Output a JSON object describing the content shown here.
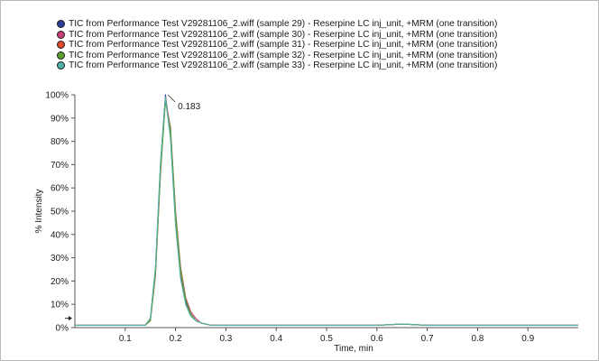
{
  "chart_data": {
    "type": "line",
    "title": "",
    "xlabel": "Time, min",
    "ylabel": "% Intensity",
    "xlim": [
      0.0,
      1.0
    ],
    "ylim": [
      0,
      100
    ],
    "x_ticks": [
      0.1,
      0.2,
      0.3,
      0.4,
      0.5,
      0.6,
      0.7,
      0.8,
      0.9
    ],
    "x_tick_labels": [
      "0.1",
      "0.2",
      "0.3",
      "0.4",
      "0.5",
      "0.6",
      "0.7",
      "0.8",
      "0.9"
    ],
    "y_ticks": [
      0,
      10,
      20,
      30,
      40,
      50,
      60,
      70,
      80,
      90,
      100
    ],
    "y_tick_labels": [
      "0%",
      "10%",
      "20%",
      "30%",
      "40%",
      "50%",
      "60%",
      "70%",
      "80%",
      "90%",
      "100%"
    ],
    "grid": false,
    "legend_position": "top",
    "annotations": [
      {
        "text": "0.183",
        "x": 0.183,
        "y": 100
      }
    ],
    "series": [
      {
        "name": "TIC from Performance Test V29281106_2.wiff (sample 29) - Reserpine LC inj_unit, +MRM (one transition)",
        "color": "#2f3f9e",
        "x": [
          0.0,
          0.05,
          0.1,
          0.14,
          0.15,
          0.16,
          0.17,
          0.18,
          0.19,
          0.2,
          0.21,
          0.22,
          0.23,
          0.24,
          0.25,
          0.27,
          0.3,
          0.4,
          0.5,
          0.6,
          0.65,
          0.7,
          0.8,
          0.9,
          1.0
        ],
        "y": [
          1,
          1,
          1,
          1,
          4,
          25,
          70,
          100,
          82,
          45,
          22,
          11,
          6,
          3,
          2,
          1,
          1,
          1,
          1,
          1,
          1.5,
          1,
          1,
          1,
          1
        ]
      },
      {
        "name": "TIC from Performance Test V29281106_2.wiff (sample 30) - Reserpine LC inj_unit, +MRM (one transition)",
        "color": "#c73f77",
        "x": [
          0.0,
          0.05,
          0.1,
          0.14,
          0.15,
          0.16,
          0.17,
          0.18,
          0.19,
          0.2,
          0.21,
          0.22,
          0.23,
          0.24,
          0.25,
          0.27,
          0.3,
          0.4,
          0.5,
          0.6,
          0.65,
          0.7,
          0.8,
          0.9,
          1.0
        ],
        "y": [
          1,
          1,
          1,
          1,
          3,
          22,
          66,
          98,
          86,
          50,
          26,
          13,
          7,
          4,
          2,
          1,
          1,
          1,
          1,
          1,
          1.5,
          1,
          1,
          1,
          1
        ]
      },
      {
        "name": "TIC from Performance Test V29281106_2.wiff (sample 31) - Reserpine LC inj_unit, +MRM (one transition)",
        "color": "#e0492f",
        "x": [
          0.0,
          0.05,
          0.1,
          0.14,
          0.15,
          0.16,
          0.17,
          0.18,
          0.19,
          0.2,
          0.21,
          0.22,
          0.23,
          0.24,
          0.25,
          0.27,
          0.3,
          0.4,
          0.5,
          0.6,
          0.65,
          0.7,
          0.8,
          0.9,
          1.0
        ],
        "y": [
          1,
          1,
          1,
          1,
          4,
          24,
          68,
          99,
          84,
          47,
          24,
          12,
          6,
          3,
          2,
          1,
          1,
          1,
          1,
          1,
          1.5,
          1,
          1,
          1,
          1
        ]
      },
      {
        "name": "TIC from Performance Test V29281106_2.wiff (sample 32) - Reserpine LC inj_unit, +MRM (one transition)",
        "color": "#5aa02c",
        "x": [
          0.0,
          0.05,
          0.1,
          0.14,
          0.15,
          0.16,
          0.17,
          0.18,
          0.19,
          0.2,
          0.21,
          0.22,
          0.23,
          0.24,
          0.25,
          0.27,
          0.3,
          0.4,
          0.5,
          0.6,
          0.65,
          0.7,
          0.8,
          0.9,
          1.0
        ],
        "y": [
          1,
          1,
          1,
          1,
          3,
          23,
          67,
          97,
          85,
          49,
          25,
          12,
          6,
          3,
          2,
          1,
          1,
          1,
          1,
          1,
          1.5,
          1,
          1,
          1,
          1
        ]
      },
      {
        "name": "TIC from Performance Test V29281106_2.wiff (sample 33) - Reserpine LC inj_unit, +MRM (one transition)",
        "color": "#4fb3a6",
        "x": [
          0.0,
          0.05,
          0.1,
          0.14,
          0.15,
          0.16,
          0.17,
          0.18,
          0.19,
          0.2,
          0.21,
          0.22,
          0.23,
          0.24,
          0.25,
          0.27,
          0.3,
          0.4,
          0.5,
          0.6,
          0.65,
          0.7,
          0.8,
          0.9,
          1.0
        ],
        "y": [
          1,
          1,
          1,
          1,
          4,
          26,
          71,
          99,
          81,
          44,
          21,
          10,
          5,
          3,
          2,
          1,
          1,
          1,
          1,
          1,
          1.5,
          1,
          1,
          1,
          1
        ]
      }
    ]
  }
}
